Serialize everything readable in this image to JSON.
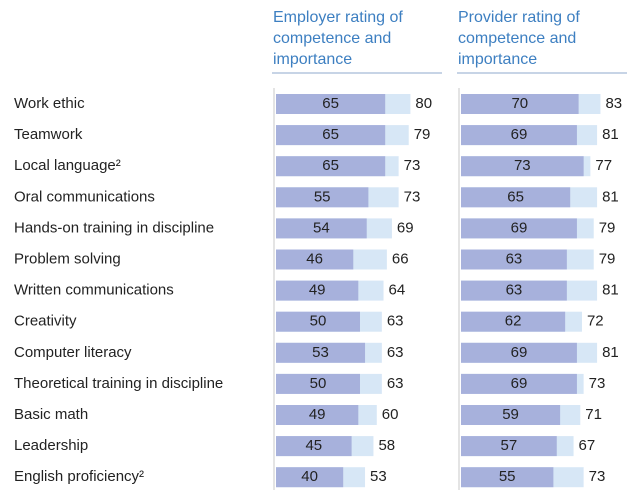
{
  "chart_data": {
    "type": "bar",
    "categories": [
      "Work ethic",
      "Teamwork",
      "Local language²",
      "Oral communications",
      "Hands-on training in discipline",
      "Problem solving",
      "Written communications",
      "Creativity",
      "Computer literacy",
      "Theoretical training in discipline",
      "Basic math",
      "Leadership",
      "English proficiency²"
    ],
    "xlim": [
      0,
      100
    ],
    "panels": [
      {
        "title": [
          "Employer rating of",
          "competence and",
          "importance"
        ],
        "series": [
          {
            "color": "#a7b1dc",
            "values": [
              65,
              65,
              65,
              55,
              54,
              46,
              49,
              50,
              53,
              50,
              49,
              45,
              40
            ]
          },
          {
            "color": "#d7e7f6",
            "values": [
              80,
              79,
              73,
              73,
              69,
              66,
              64,
              63,
              63,
              63,
              60,
              58,
              53
            ]
          }
        ]
      },
      {
        "title": [
          "Provider rating of",
          "competence and",
          "importance"
        ],
        "series": [
          {
            "color": "#a7b1dc",
            "values": [
              70,
              69,
              73,
              65,
              69,
              63,
              63,
              62,
              69,
              69,
              59,
              57,
              55
            ]
          },
          {
            "color": "#d7e7f6",
            "values": [
              83,
              81,
              77,
              81,
              79,
              79,
              81,
              72,
              81,
              73,
              71,
              67,
              73
            ]
          }
        ]
      }
    ]
  }
}
